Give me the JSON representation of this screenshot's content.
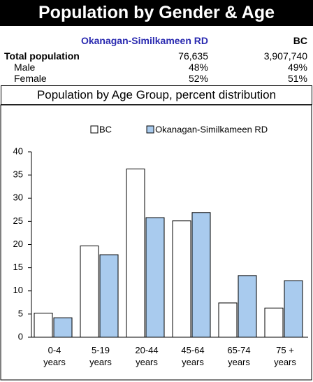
{
  "header": {
    "title": "Population by Gender & Age"
  },
  "table": {
    "columns": [
      "Okanagan-Similkameen RD",
      "BC"
    ],
    "rows": [
      [
        "Total population",
        "76,635",
        "3,907,740"
      ],
      [
        "Male",
        "48%",
        "49%"
      ],
      [
        "Female",
        "52%",
        "51%"
      ]
    ]
  },
  "chart_data": {
    "type": "bar",
    "title": "Population by Age Group, percent distribution",
    "categories": [
      "0-4 years",
      "5-19 years",
      "20-44 years",
      "45-64 years",
      "65-74 years",
      "75 + years"
    ],
    "series": [
      {
        "name": "BC",
        "color": "#ffffff",
        "values": [
          5.2,
          19.7,
          36.3,
          25.1,
          7.4,
          6.3
        ]
      },
      {
        "name": "Okanagan-Similkameen RD",
        "color": "#a9cbee",
        "values": [
          4.2,
          17.8,
          25.8,
          26.9,
          13.3,
          12.2
        ]
      }
    ],
    "ylim": [
      0,
      40
    ],
    "yticks": [
      0,
      5,
      10,
      15,
      20,
      25,
      30,
      35,
      40
    ],
    "grid": false,
    "legend": "top"
  }
}
